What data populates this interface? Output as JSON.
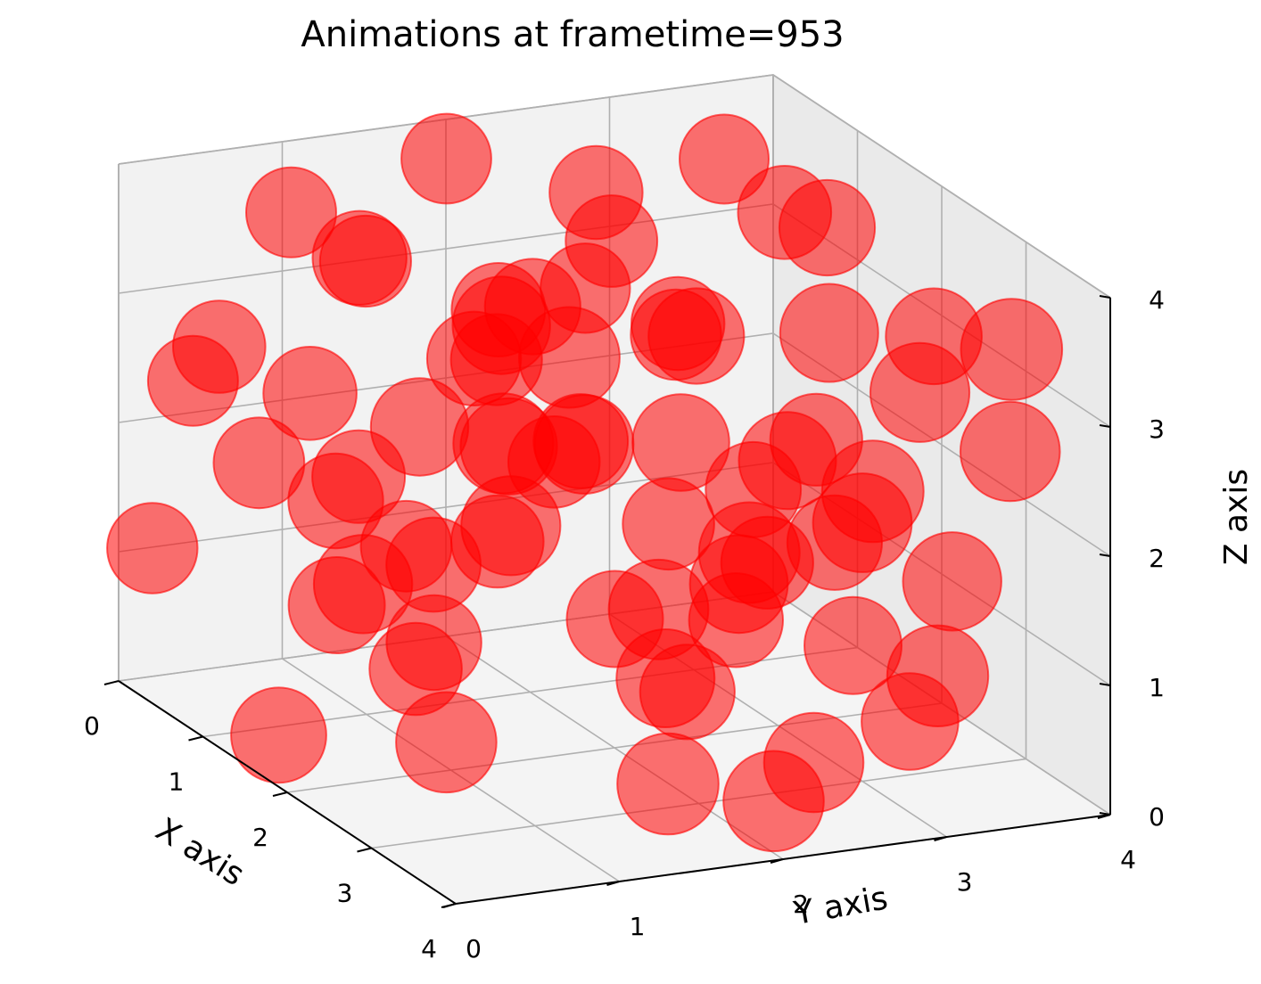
{
  "chart_data": {
    "type": "scatter3d",
    "title": "Animations at frametime=953",
    "xlabel": "X axis",
    "ylabel": "Y axis",
    "zlabel": "Z axis",
    "xlim": [
      0,
      4
    ],
    "ylim": [
      0,
      4
    ],
    "zlim": [
      0,
      4
    ],
    "xticks": [
      "0",
      "1",
      "2",
      "3",
      "4"
    ],
    "yticks": [
      "0",
      "1",
      "2",
      "3",
      "4"
    ],
    "zticks": [
      "0",
      "1",
      "2",
      "3",
      "4"
    ],
    "grid": true,
    "marker_color": "#ff0000",
    "marker_alpha": 0.55,
    "points": [
      [
        1.0,
        0.1,
        3.0
      ],
      [
        0.6,
        1.2,
        3.3
      ],
      [
        0.3,
        0.3,
        2.4
      ],
      [
        1.8,
        0.4,
        2.1
      ],
      [
        0.5,
        0.6,
        1.8
      ],
      [
        1.5,
        1.4,
        2.9
      ],
      [
        2.0,
        1.5,
        3.5
      ],
      [
        3.1,
        0.8,
        2.4
      ],
      [
        2.2,
        0.2,
        1.5
      ],
      [
        1.0,
        1.8,
        1.2
      ],
      [
        0.7,
        2.3,
        1.6
      ],
      [
        2.8,
        1.9,
        0.9
      ],
      [
        3.5,
        0.2,
        1.0
      ],
      [
        3.8,
        1.4,
        0.6
      ],
      [
        3.2,
        2.6,
        0.3
      ],
      [
        2.5,
        3.2,
        0.8
      ],
      [
        1.7,
        3.5,
        1.2
      ],
      [
        0.9,
        3.8,
        1.6
      ],
      [
        0.4,
        3.2,
        2.3
      ],
      [
        1.2,
        2.8,
        2.8
      ],
      [
        2.0,
        2.5,
        3.1
      ],
      [
        2.6,
        1.0,
        3.7
      ],
      [
        0.2,
        1.9,
        3.8
      ],
      [
        1.3,
        3.4,
        3.6
      ],
      [
        3.0,
        3.0,
        2.0
      ],
      [
        2.4,
        2.2,
        2.5
      ],
      [
        1.6,
        2.0,
        2.2
      ],
      [
        1.9,
        2.9,
        1.8
      ],
      [
        2.7,
        2.4,
        1.5
      ],
      [
        3.3,
        1.6,
        1.7
      ],
      [
        1.1,
        0.9,
        1.9
      ],
      [
        0.8,
        2.6,
        3.3
      ],
      [
        2.3,
        1.2,
        2.6
      ],
      [
        1.4,
        1.6,
        3.2
      ],
      [
        3.6,
        2.0,
        2.2
      ],
      [
        2.9,
        3.6,
        1.4
      ],
      [
        0.1,
        2.8,
        2.6
      ],
      [
        1.5,
        3.0,
        0.6
      ],
      [
        2.1,
        3.9,
        2.9
      ],
      [
        3.7,
        3.1,
        1.1
      ],
      [
        0.5,
        1.5,
        1.0
      ],
      [
        1.8,
        1.0,
        0.9
      ],
      [
        2.6,
        0.5,
        3.0
      ],
      [
        3.9,
        2.6,
        2.7
      ],
      [
        3.2,
        3.8,
        2.5
      ],
      [
        0.3,
        0.9,
        3.6
      ],
      [
        1.2,
        2.3,
        3.9
      ],
      [
        2.8,
        2.9,
        3.4
      ],
      [
        3.4,
        0.6,
        3.2
      ],
      [
        0.9,
        3.5,
        0.7
      ],
      [
        1.6,
        1.1,
        1.4
      ],
      [
        2.2,
        1.9,
        1.1
      ],
      [
        3.0,
        1.3,
        2.9
      ],
      [
        0.6,
        2.0,
        2.4
      ],
      [
        1.3,
        0.5,
        2.7
      ],
      [
        2.5,
        2.8,
        2.3
      ],
      [
        3.8,
        3.5,
        3.6
      ],
      [
        0.0,
        3.7,
        3.4
      ],
      [
        1.9,
        0.0,
        0.4
      ],
      [
        3.5,
        2.2,
        0.2
      ],
      [
        2.0,
        3.3,
        3.8
      ],
      [
        1.0,
        1.3,
        0.3
      ],
      [
        2.9,
        0.0,
        2.0
      ],
      [
        0.4,
        0.0,
        1.2
      ],
      [
        1.7,
        2.6,
        0.2
      ],
      [
        3.6,
        0.9,
        3.9
      ],
      [
        2.4,
        3.6,
        0.1
      ],
      [
        0.7,
        3.0,
        1.0
      ],
      [
        1.5,
        0.7,
        3.8
      ],
      [
        3.1,
        3.3,
        3.0
      ]
    ]
  }
}
